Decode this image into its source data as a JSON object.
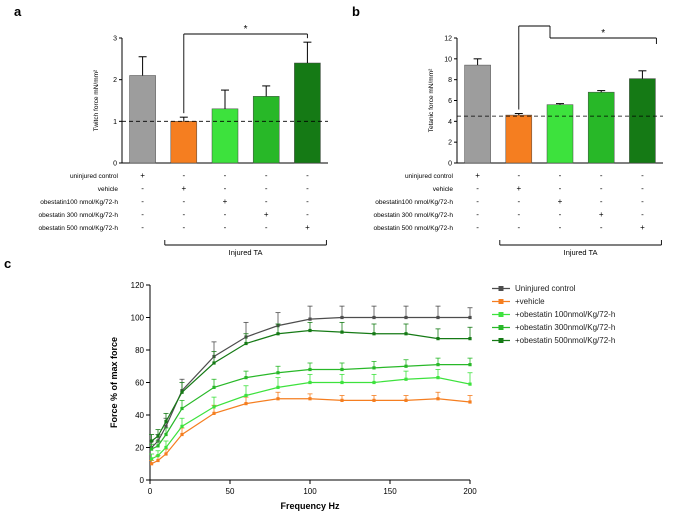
{
  "panels": {
    "a": {
      "label": "a"
    },
    "b": {
      "label": "b"
    },
    "c": {
      "label": "c"
    }
  },
  "treatment_rows": [
    {
      "label": "uninjured control",
      "signs": [
        "+",
        "-",
        "-",
        "-",
        "-"
      ]
    },
    {
      "label": "vehicle",
      "signs": [
        "-",
        "+",
        "-",
        "-",
        "-"
      ]
    },
    {
      "label": "obestatin100 nmol/Kg/72-h",
      "signs": [
        "-",
        "-",
        "+",
        "-",
        "-"
      ]
    },
    {
      "label": "obestatin 300 nmol/Kg/72-h",
      "signs": [
        "-",
        "-",
        "-",
        "+",
        "-"
      ]
    },
    {
      "label": "obestatin 500 nmol/Kg/72-h",
      "signs": [
        "-",
        "-",
        "-",
        "-",
        "+"
      ]
    }
  ],
  "group_label": "Injured TA",
  "chart_data": [
    {
      "id": "chart-a",
      "type": "bar",
      "ylabel": "Twitch force  mN/mm²",
      "ylim": [
        0,
        3
      ],
      "yticks": [
        0,
        1,
        2,
        3
      ],
      "dashed_line": 1.0,
      "categories": [
        "uninjured control",
        "vehicle",
        "obestatin 100 nmol/Kg/72-h",
        "obestatin 300 nmol/Kg/72-h",
        "obestatin 500 nmol/Kg/72-h"
      ],
      "values": [
        2.1,
        1.0,
        1.3,
        1.6,
        2.4
      ],
      "errors": [
        0.45,
        0.1,
        0.45,
        0.25,
        0.5
      ],
      "colors": [
        "#9d9d9d",
        "#f57e20",
        "#3de23d",
        "#28b828",
        "#157a15"
      ],
      "bracket": {
        "style": "simple",
        "from": 1,
        "to": 4,
        "label": "*"
      }
    },
    {
      "id": "chart-b",
      "type": "bar",
      "ylabel": "Tetanic force  mN/mm²",
      "ylim": [
        0,
        12
      ],
      "yticks": [
        0,
        2,
        4,
        6,
        8,
        10,
        12
      ],
      "dashed_line": 4.5,
      "categories": [
        "uninjured control",
        "vehicle",
        "obestatin 100 nmol/Kg/72-h",
        "obestatin 300 nmol/Kg/72-h",
        "obestatin 500 nmol/Kg/72-h"
      ],
      "values": [
        9.4,
        4.6,
        5.6,
        6.8,
        8.1
      ],
      "errors": [
        0.6,
        0.15,
        0.1,
        0.15,
        0.75
      ],
      "colors": [
        "#9d9d9d",
        "#f57e20",
        "#3de23d",
        "#28b828",
        "#157a15"
      ],
      "bracket": {
        "style": "step",
        "from": 1,
        "to": 4,
        "step_at": 2,
        "label": "*"
      }
    },
    {
      "id": "chart-c",
      "type": "line",
      "xlabel": "Frequency Hz",
      "ylabel": "Force % of max force",
      "xlim": [
        0,
        200
      ],
      "ylim": [
        0,
        120
      ],
      "xticks": [
        0,
        50,
        100,
        150,
        200
      ],
      "yticks": [
        0,
        20,
        40,
        60,
        80,
        100,
        120
      ],
      "x": [
        1,
        5,
        10,
        20,
        40,
        60,
        80,
        100,
        120,
        140,
        160,
        180,
        200
      ],
      "series": [
        {
          "name": "Uninjured control",
          "color": "#4d4d4d",
          "values": [
            20,
            24,
            33,
            55,
            76,
            88,
            95,
            99,
            100,
            100,
            100,
            100,
            100
          ],
          "errors": [
            4,
            4,
            5,
            7,
            9,
            9,
            8,
            8,
            7,
            7,
            7,
            7,
            6
          ]
        },
        {
          "name": "+vehicle",
          "color": "#f57e20",
          "values": [
            10,
            12,
            16,
            28,
            41,
            47,
            50,
            50,
            49,
            49,
            49,
            50,
            48
          ],
          "errors": [
            2,
            3,
            3,
            4,
            5,
            4,
            4,
            3,
            3,
            3,
            3,
            4,
            4
          ]
        },
        {
          "name": "+obestatin 100nmol/Kg/72-h",
          "color": "#3de23d",
          "values": [
            13,
            15,
            20,
            33,
            45,
            52,
            57,
            60,
            60,
            60,
            62,
            63,
            59
          ],
          "errors": [
            3,
            3,
            4,
            5,
            6,
            6,
            6,
            5,
            5,
            5,
            5,
            5,
            7
          ]
        },
        {
          "name": "+obestatin 300nmol/Kg/72-h",
          "color": "#28b828",
          "values": [
            19,
            21,
            28,
            44,
            57,
            63,
            66,
            68,
            68,
            69,
            70,
            71,
            71
          ],
          "errors": [
            3,
            3,
            4,
            5,
            5,
            4,
            4,
            4,
            4,
            4,
            4,
            4,
            4
          ]
        },
        {
          "name": "+obestatin 500nmol/Kg/72-h",
          "color": "#157a15",
          "values": [
            24,
            27,
            36,
            54,
            72,
            84,
            90,
            92,
            91,
            90,
            90,
            87,
            87
          ],
          "errors": [
            4,
            4,
            5,
            6,
            7,
            6,
            6,
            5,
            6,
            6,
            6,
            6,
            7
          ]
        }
      ],
      "legend_position": "right",
      "grid": false
    }
  ]
}
